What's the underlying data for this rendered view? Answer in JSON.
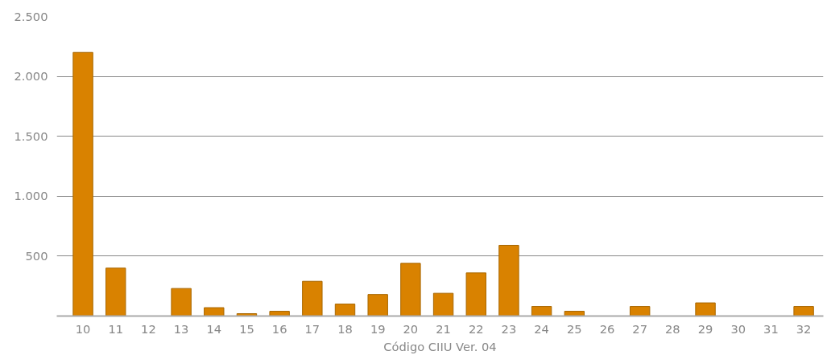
{
  "chart_data": {
    "type": "bar",
    "xlabel": "Código CIIU Ver. 04",
    "categories": [
      "10",
      "11",
      "12",
      "13",
      "14",
      "15",
      "16",
      "17",
      "18",
      "19",
      "20",
      "21",
      "22",
      "23",
      "24",
      "25",
      "26",
      "27",
      "28",
      "29",
      "30",
      "31",
      "32"
    ],
    "values": [
      2200,
      400,
      null,
      230,
      70,
      20,
      40,
      290,
      100,
      180,
      440,
      190,
      360,
      590,
      80,
      40,
      null,
      80,
      null,
      110,
      null,
      null,
      80
    ],
    "color": "#d98200",
    "ylim": [
      0,
      2500
    ],
    "yticks": [
      {
        "value": 500,
        "label": "500"
      },
      {
        "value": 1000,
        "label": "1.000"
      },
      {
        "value": 1500,
        "label": "1.500"
      },
      {
        "value": 2000,
        "label": "2.000"
      },
      {
        "value": 2500,
        "label": "2.500"
      }
    ],
    "grid": "y"
  }
}
